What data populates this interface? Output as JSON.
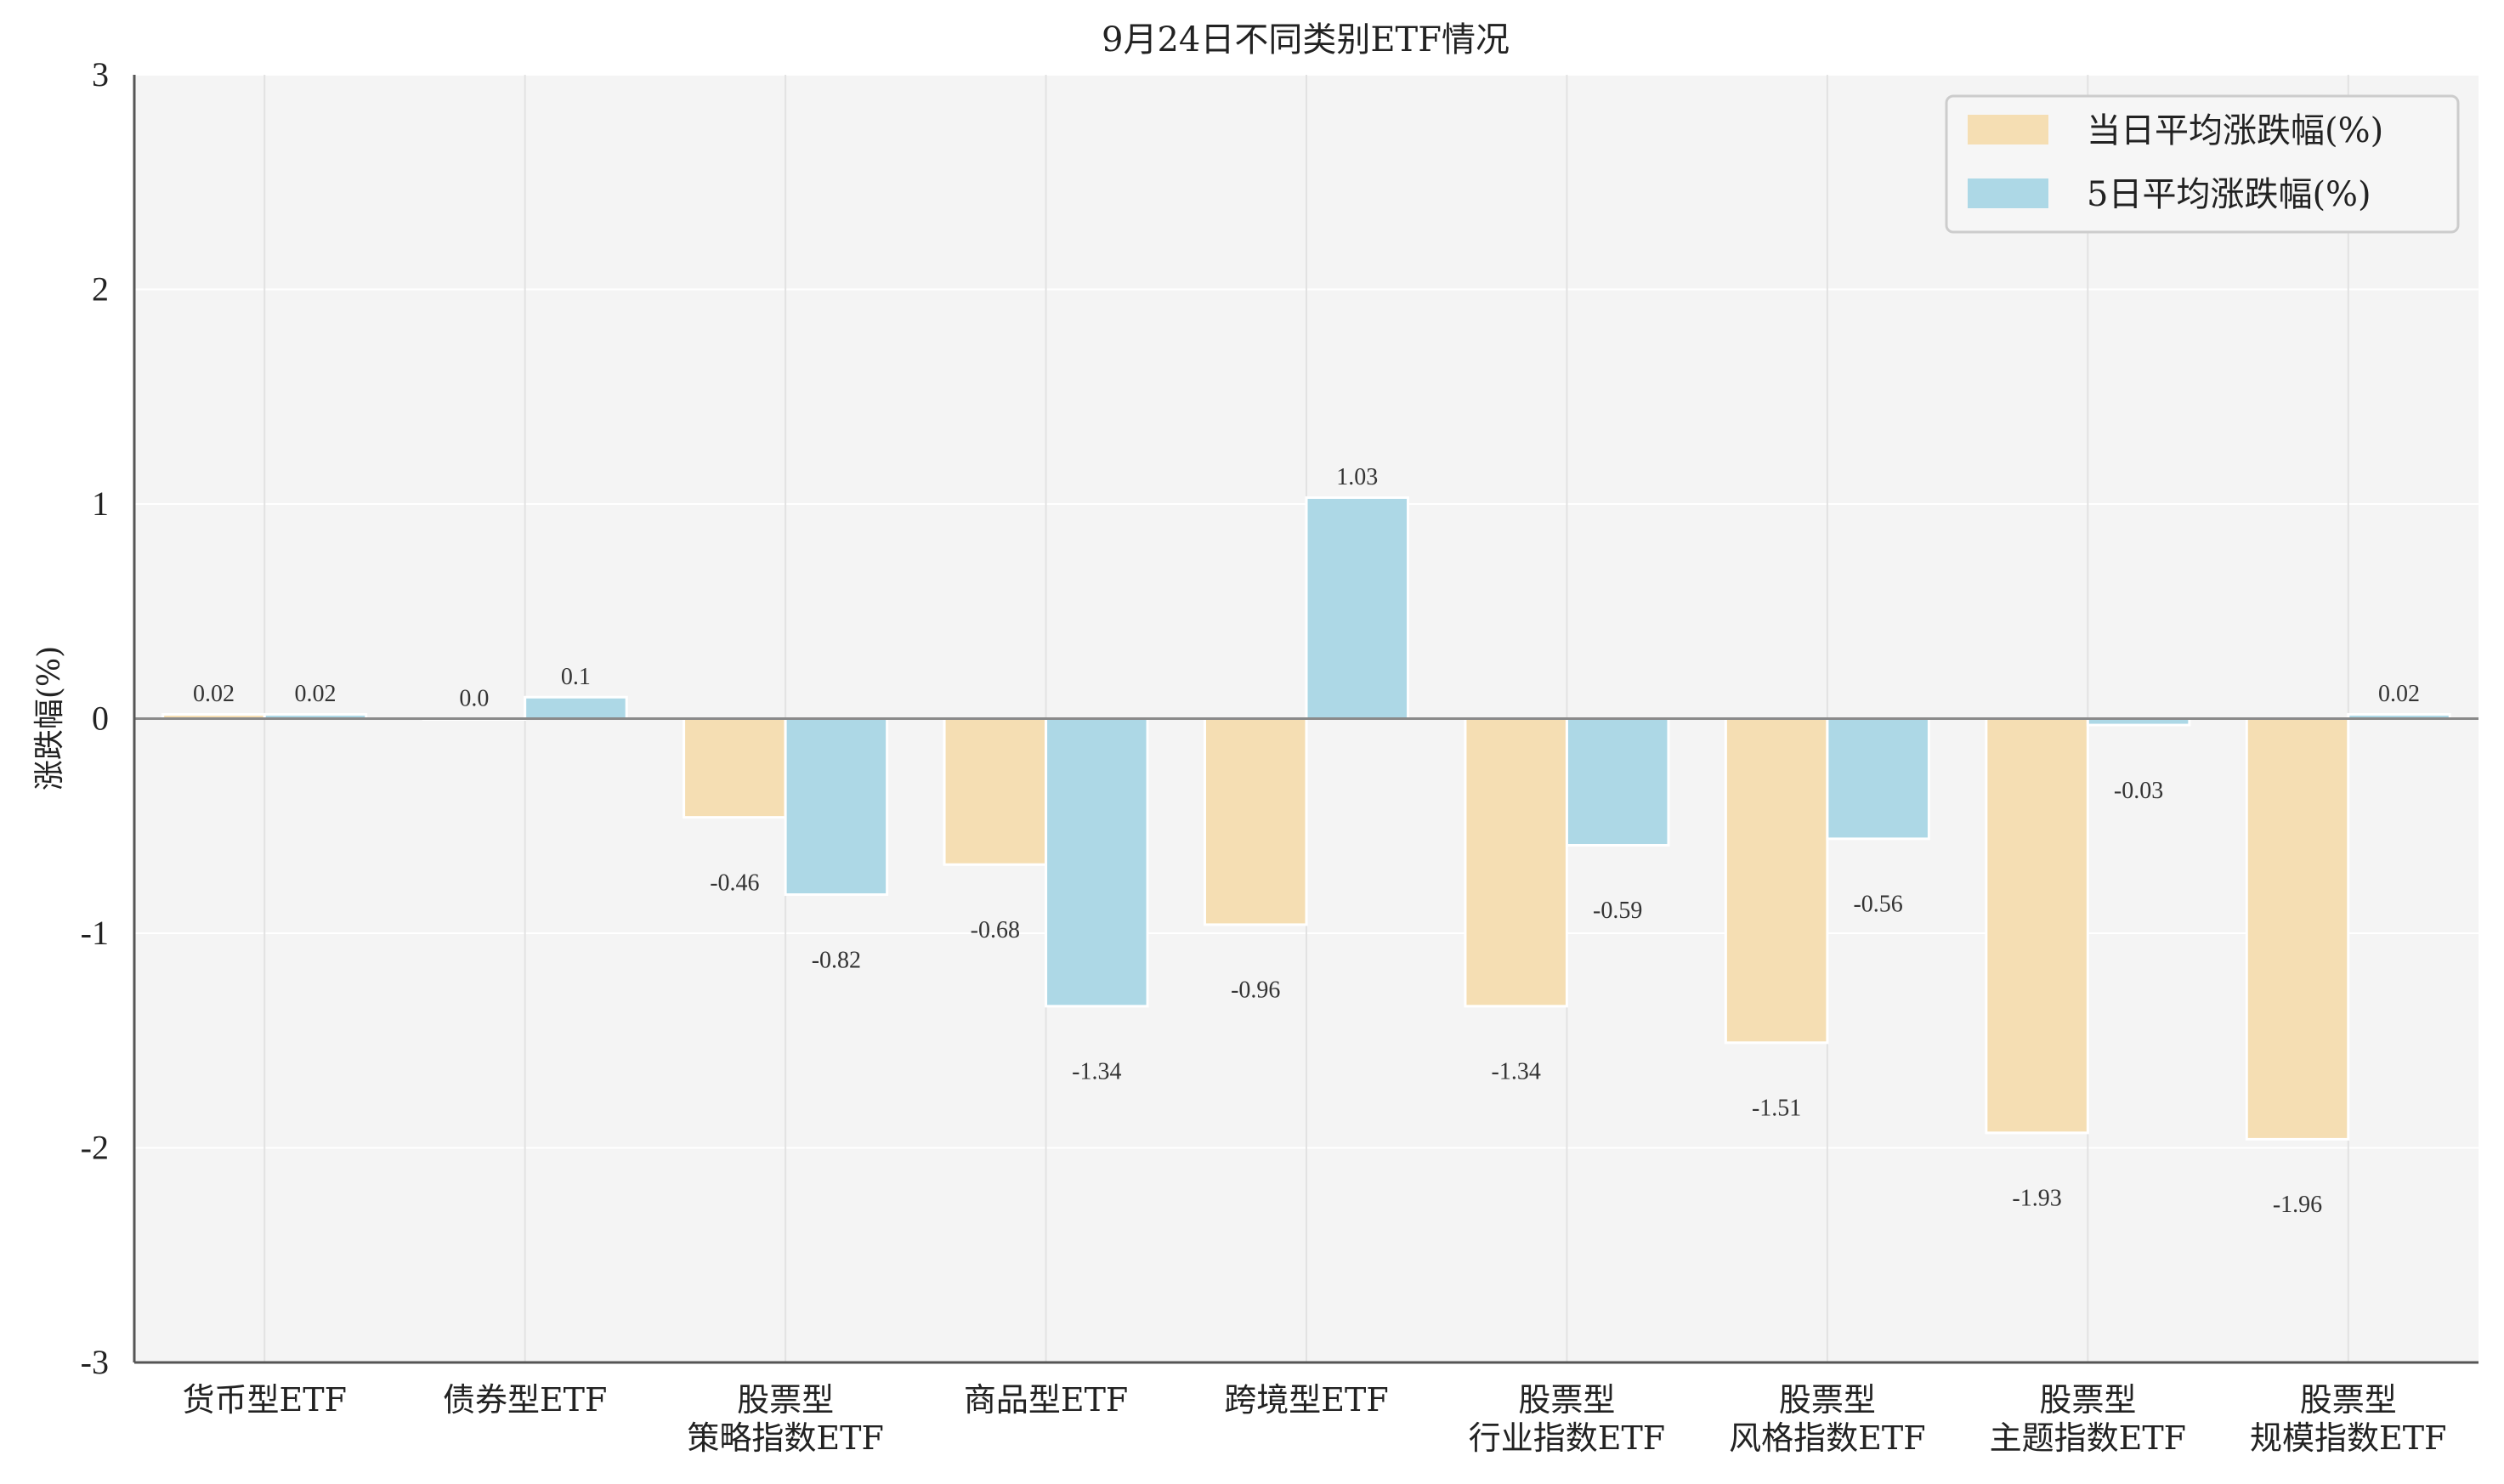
{
  "chart_data": {
    "type": "bar",
    "title": "9月24日不同类别ETF情况",
    "xlabel": "",
    "ylabel": "涨跌幅(%)",
    "ylim": [
      -3,
      3
    ],
    "yticks": [
      3,
      2,
      1,
      0,
      -1,
      -2,
      -3
    ],
    "grid": true,
    "legend_position": "top-right",
    "categories": [
      [
        "货币型ETF"
      ],
      [
        "债券型ETF"
      ],
      [
        "股票型",
        "策略指数ETF"
      ],
      [
        "商品型ETF"
      ],
      [
        "跨境型ETF"
      ],
      [
        "股票型",
        "行业指数ETF"
      ],
      [
        "股票型",
        "风格指数ETF"
      ],
      [
        "股票型",
        "主题指数ETF"
      ],
      [
        "股票型",
        "规模指数ETF"
      ]
    ],
    "series": [
      {
        "name": "当日平均涨跌幅(%)",
        "color": "#f5deb3",
        "values": [
          0.02,
          0.0,
          -0.46,
          -0.68,
          -0.96,
          -1.34,
          -1.51,
          -1.93,
          -1.96
        ],
        "labels": [
          "0.02",
          "0.0",
          "-0.46",
          "-0.68",
          "-0.96",
          "-1.34",
          "-1.51",
          "-1.93",
          "-1.96"
        ]
      },
      {
        "name": "5日平均涨跌幅(%)",
        "color": "#add8e6",
        "values": [
          0.02,
          0.1,
          -0.82,
          -1.34,
          1.03,
          -0.59,
          -0.56,
          -0.03,
          0.02
        ],
        "labels": [
          "0.02",
          "0.1",
          "-0.82",
          "-1.34",
          "1.03",
          "-0.59",
          "-0.56",
          "-0.03",
          "0.02"
        ]
      }
    ]
  }
}
